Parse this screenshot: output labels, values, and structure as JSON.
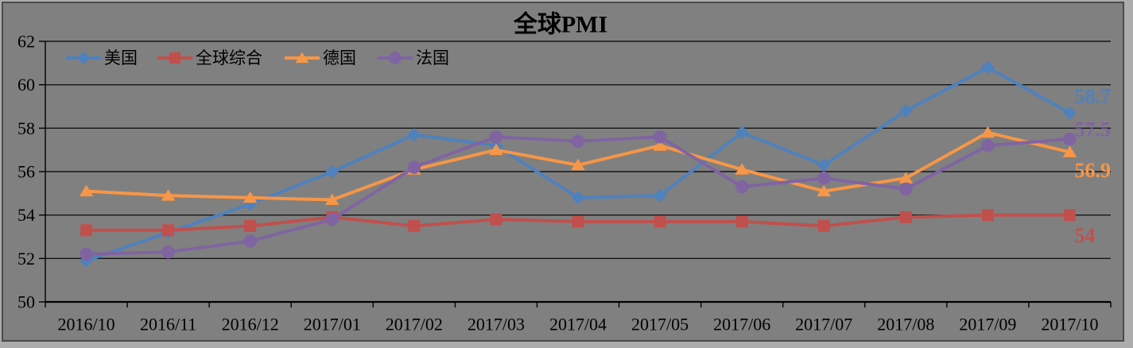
{
  "window": {
    "background": "#ACACAC",
    "canvas_background": "#808080",
    "border_color": "#4A4A4A",
    "gridline_color": "#141414",
    "axis_color": "#000000",
    "text_color": "#000000"
  },
  "chart_data": {
    "type": "line",
    "title": "全球PMI",
    "categories": [
      "2016/10",
      "2016/11",
      "2016/12",
      "2017/01",
      "2017/02",
      "2017/03",
      "2017/04",
      "2017/05",
      "2017/06",
      "2017/07",
      "2017/08",
      "2017/09",
      "2017/10"
    ],
    "series": [
      {
        "name": "美国",
        "color": "#4F81BD",
        "marker": "diamond",
        "values": [
          51.9,
          53.2,
          54.5,
          56.0,
          57.7,
          57.2,
          54.8,
          54.9,
          57.8,
          56.3,
          58.8,
          60.8,
          58.7
        ],
        "end_label": "58.7"
      },
      {
        "name": "全球综合",
        "color": "#C0504D",
        "marker": "square",
        "values": [
          53.3,
          53.3,
          53.5,
          53.9,
          53.5,
          53.8,
          53.7,
          53.7,
          53.7,
          53.5,
          53.9,
          54.0,
          54.0
        ],
        "end_label": "54"
      },
      {
        "name": "德国",
        "color": "#F79646",
        "marker": "triangle",
        "values": [
          55.1,
          54.9,
          54.8,
          54.7,
          56.1,
          57.0,
          56.3,
          57.2,
          56.1,
          55.1,
          55.7,
          57.8,
          56.9
        ],
        "end_label": "56.9"
      },
      {
        "name": "法国",
        "color": "#8064A2",
        "marker": "circle",
        "values": [
          52.2,
          52.3,
          52.8,
          53.8,
          56.2,
          57.6,
          57.4,
          57.6,
          55.3,
          55.7,
          55.2,
          57.2,
          57.5
        ],
        "end_label": "57.5"
      }
    ],
    "ylim": [
      50,
      62
    ],
    "yticks": [
      62,
      60,
      58,
      56,
      54,
      52,
      50
    ],
    "grid": true,
    "legend_position": "top-inside-horizontal"
  }
}
